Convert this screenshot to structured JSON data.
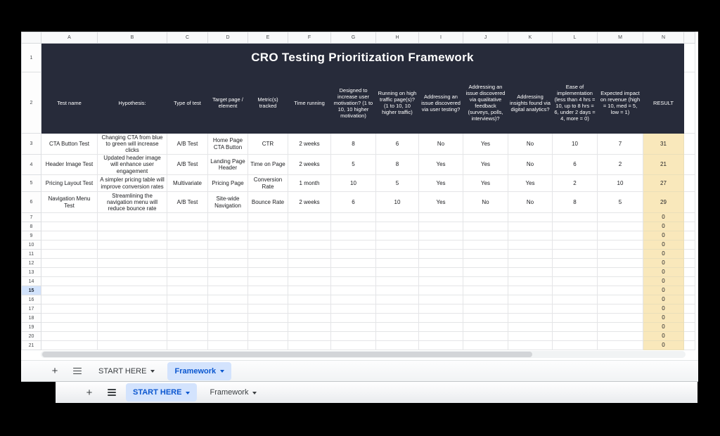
{
  "sheet": {
    "title": "CRO Testing Prioritization Framework",
    "columns": [
      "A",
      "B",
      "C",
      "D",
      "E",
      "F",
      "G",
      "H",
      "I",
      "J",
      "K",
      "L",
      "M",
      "N"
    ],
    "headers": [
      "Test name",
      "Hypothesis:",
      "Type of test",
      "Target page / element",
      "Metric(s) tracked",
      "Time running",
      "Designed to increase user motivation? (1 to 10, 10 higher motivation)",
      "Running on high traffic page(s)? (1 to 10, 10 higher traffic)",
      "Addressing an issue discovered via user testing?",
      "Addressing an issue discovered via qualitative feedback (surveys, polls, interviews)?",
      "Addressing insights found via digital analytics?",
      "Ease of implementation\n(less than 4 hrs = 10, up to 8 hrs = 6, under 2 days = 4, more = 0)",
      "Expected impact on revenue (high = 10, med = 5, low = 1)",
      "RESULT"
    ],
    "data_rows": [
      {
        "row": 3,
        "cells": [
          "CTA Button Test",
          "Changing CTA from blue to green will increase clicks",
          "A/B Test",
          "Home Page CTA Button",
          "CTR",
          "2 weeks",
          "8",
          "6",
          "No",
          "Yes",
          "No",
          "10",
          "7",
          "31"
        ]
      },
      {
        "row": 4,
        "cells": [
          "Header Image Test",
          "Updated header image will enhance user engagement",
          "A/B Test",
          "Landing Page Header",
          "Time on Page",
          "2 weeks",
          "5",
          "8",
          "Yes",
          "Yes",
          "No",
          "6",
          "2",
          "21"
        ]
      },
      {
        "row": 5,
        "cells": [
          "Pricing Layout Test",
          "A simpler pricing table will improve conversion rates",
          "Multivariate",
          "Pricing Page",
          "Conversion Rate",
          "1 month",
          "10",
          "5",
          "Yes",
          "Yes",
          "Yes",
          "2",
          "10",
          "27"
        ]
      },
      {
        "row": 6,
        "cells": [
          "Navigation Menu Test",
          "Streamlining the navigation menu will reduce bounce rate",
          "A/B Test",
          "Site-wide Navigation",
          "Bounce Rate",
          "2 weeks",
          "6",
          "10",
          "Yes",
          "No",
          "No",
          "8",
          "5",
          "29"
        ]
      }
    ],
    "empty_rows": {
      "from": 7,
      "to": 21,
      "result_value": "0"
    },
    "selected_row": 15
  },
  "front_tab_bar": {
    "add_label": "+",
    "tabs": [
      {
        "label": "START HERE",
        "active": false
      },
      {
        "label": "Framework",
        "active": true
      }
    ]
  },
  "back_tab_bar": {
    "add_label": "+",
    "tabs": [
      {
        "label": "START HERE",
        "active": true
      },
      {
        "label": "Framework",
        "active": false
      }
    ]
  },
  "colors": {
    "header_bg": "#272b3a",
    "result_fill": "#f9e8bb",
    "active_tab": "#0b57d0",
    "active_tab_bg": "#d3e3fd",
    "selected_row_bg": "#d2e3fc"
  }
}
